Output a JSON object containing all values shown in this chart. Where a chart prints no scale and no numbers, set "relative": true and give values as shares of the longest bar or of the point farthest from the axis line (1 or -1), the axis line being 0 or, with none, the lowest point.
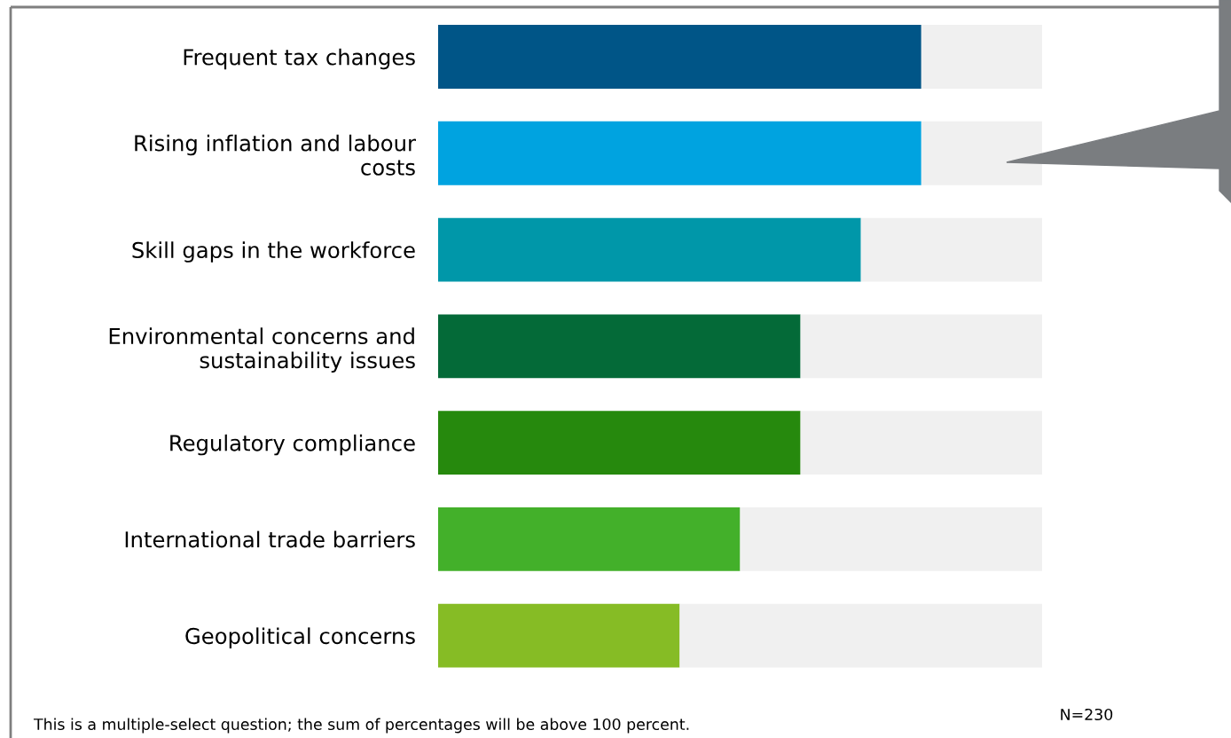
{
  "chart_data": {
    "type": "bar",
    "orientation": "horizontal",
    "stacked": true,
    "relative": true,
    "legend": false,
    "grid": false,
    "categories": [
      "Frequent tax changes",
      "Rising inflation and labour\ncosts",
      "Skill gaps in the workforce",
      "Environmental concerns and\nsustainability issues",
      "Regulatory compliance",
      "International trade barriers",
      "Geopolitical concerns"
    ],
    "series": [
      {
        "colors": [
          "#005587",
          "#00a3e0",
          "#0097a9",
          "#046a38",
          "#26890d",
          "#43b02a",
          "#86bc25"
        ],
        "values": [
          0.8,
          0.8,
          0.7,
          0.6,
          0.6,
          0.5,
          0.4
        ]
      },
      {
        "color": "#f0f0f0",
        "values": [
          0.2,
          0.2,
          0.3,
          0.4,
          0.4,
          0.5,
          0.6
        ]
      }
    ],
    "annotations": [
      "This is a multiple-select question; the sum of percentages will be above 100 percent.",
      "N=230"
    ]
  }
}
